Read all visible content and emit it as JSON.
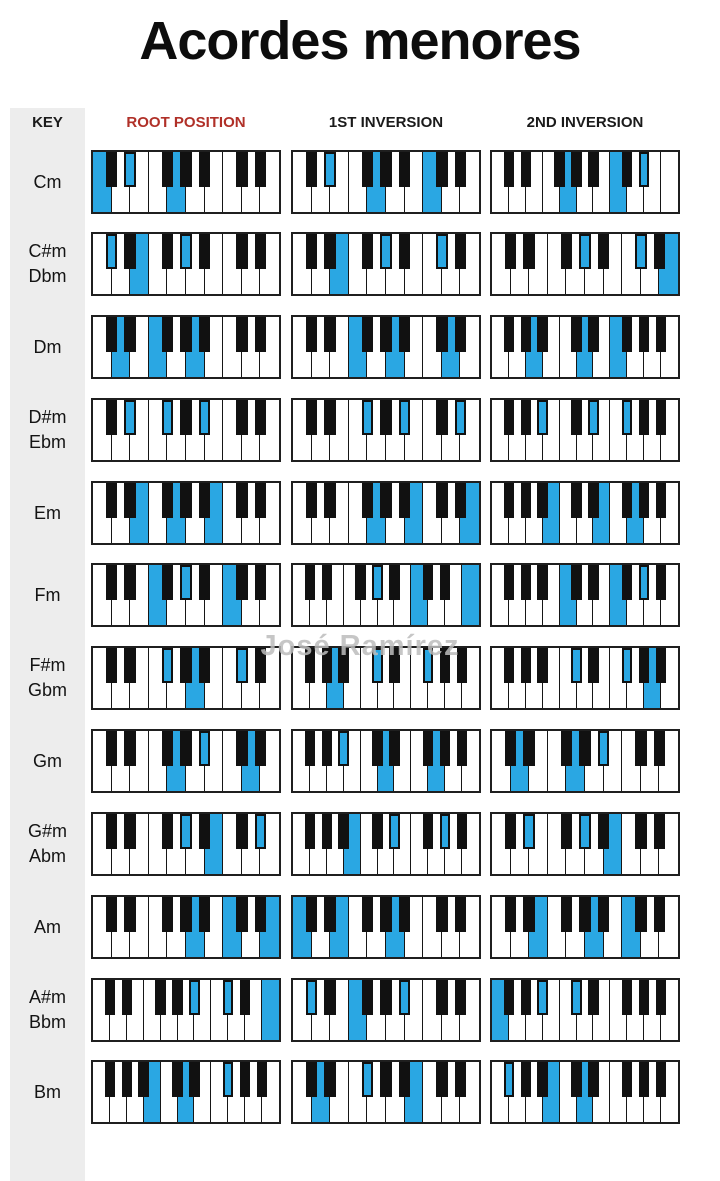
{
  "title": "Acordes menores",
  "watermark": "José Ramírez",
  "headers": {
    "key": "KEY",
    "root": "ROOT POSITION",
    "first": "1ST INVERSION",
    "second": "2ND INVERSION"
  },
  "colors": {
    "highlight": "#2aa7e3",
    "root_header_red": "#b03028",
    "strip_gray": "#ededed",
    "key_black": "#111111"
  },
  "layout_note": "12 rows x 3 keyboard diagrams; blue keys = chord tones",
  "rows": [
    {
      "key_label": [
        "Cm"
      ],
      "keyboards": [
        {
          "start": "C",
          "white_count": 10,
          "hl_whites": [
            0,
            4
          ],
          "hl_blacks": [
            1
          ],
          "chord": "C Eb G"
        },
        {
          "start": "C",
          "white_count": 10,
          "hl_whites": [
            4,
            7
          ],
          "hl_blacks": [
            1
          ],
          "chord": "Eb G C"
        },
        {
          "start": "C",
          "white_count": 11,
          "hl_whites": [
            4,
            7
          ],
          "hl_blacks": [
            6
          ],
          "chord": "G C Eb"
        }
      ]
    },
    {
      "key_label": [
        "C#m",
        "Dbm"
      ],
      "keyboards": [
        {
          "start": "C",
          "white_count": 10,
          "hl_whites": [
            2
          ],
          "hl_blacks": [
            0,
            3
          ],
          "chord": "C# E G#"
        },
        {
          "start": "C",
          "white_count": 10,
          "hl_whites": [
            2
          ],
          "hl_blacks": [
            3,
            5
          ],
          "chord": "E G# C#"
        },
        {
          "start": "C",
          "white_count": 10,
          "hl_whites": [
            9
          ],
          "hl_blacks": [
            3,
            5
          ],
          "chord": "G# C# E"
        }
      ]
    },
    {
      "key_label": [
        "Dm"
      ],
      "keyboards": [
        {
          "start": "C",
          "white_count": 10,
          "hl_whites": [
            1,
            3,
            5
          ],
          "hl_blacks": [],
          "chord": "D F A"
        },
        {
          "start": "C",
          "white_count": 10,
          "hl_whites": [
            3,
            5,
            8
          ],
          "hl_blacks": [],
          "chord": "F A D"
        },
        {
          "start": "F",
          "white_count": 11,
          "hl_whites": [
            2,
            5,
            7
          ],
          "hl_blacks": [],
          "chord": "A D F"
        }
      ]
    },
    {
      "key_label": [
        "D#m",
        "Ebm"
      ],
      "keyboards": [
        {
          "start": "C",
          "white_count": 10,
          "hl_whites": [],
          "hl_blacks": [
            1,
            2,
            4
          ],
          "chord": "Eb Gb Bb"
        },
        {
          "start": "C",
          "white_count": 10,
          "hl_whites": [],
          "hl_blacks": [
            2,
            4,
            6
          ],
          "chord": "Gb Bb Eb"
        },
        {
          "start": "F",
          "white_count": 11,
          "hl_whites": [],
          "hl_blacks": [
            2,
            4,
            5
          ],
          "chord": "Bb Eb Gb"
        }
      ]
    },
    {
      "key_label": [
        "Em"
      ],
      "keyboards": [
        {
          "start": "C",
          "white_count": 10,
          "hl_whites": [
            2,
            4,
            6
          ],
          "hl_blacks": [],
          "chord": "E G B"
        },
        {
          "start": "C",
          "white_count": 10,
          "hl_whites": [
            4,
            6,
            9
          ],
          "hl_blacks": [],
          "chord": "G B E"
        },
        {
          "start": "F",
          "white_count": 11,
          "hl_whites": [
            3,
            6,
            8
          ],
          "hl_blacks": [],
          "chord": "B E G"
        }
      ]
    },
    {
      "key_label": [
        "Fm"
      ],
      "keyboards": [
        {
          "start": "C",
          "white_count": 10,
          "hl_whites": [
            3,
            7
          ],
          "hl_blacks": [
            3
          ],
          "chord": "F Ab C"
        },
        {
          "start": "C",
          "white_count": 11,
          "hl_whites": [
            7,
            10
          ],
          "hl_blacks": [
            3
          ],
          "chord": "Ab C F"
        },
        {
          "start": "F",
          "white_count": 11,
          "hl_whites": [
            4,
            7
          ],
          "hl_blacks": [
            6
          ],
          "chord": "C F Ab"
        }
      ]
    },
    {
      "key_label": [
        "F#m",
        "Gbm"
      ],
      "keyboards": [
        {
          "start": "C",
          "white_count": 10,
          "hl_whites": [
            5
          ],
          "hl_blacks": [
            2,
            5
          ],
          "chord": "F# A C#"
        },
        {
          "start": "F",
          "white_count": 11,
          "hl_whites": [
            2
          ],
          "hl_blacks": [
            3,
            5
          ],
          "chord": "A C# F#"
        },
        {
          "start": "F",
          "white_count": 11,
          "hl_whites": [
            9
          ],
          "hl_blacks": [
            3,
            5
          ],
          "chord": "C# F# A"
        }
      ]
    },
    {
      "key_label": [
        "Gm"
      ],
      "keyboards": [
        {
          "start": "C",
          "white_count": 10,
          "hl_whites": [
            4,
            8
          ],
          "hl_blacks": [
            4
          ],
          "chord": "G Bb D"
        },
        {
          "start": "F",
          "white_count": 11,
          "hl_whites": [
            5,
            8
          ],
          "hl_blacks": [
            2
          ],
          "chord": "Bb D G"
        },
        {
          "start": "C",
          "white_count": 10,
          "hl_whites": [
            1,
            4
          ],
          "hl_blacks": [
            4
          ],
          "chord": "D G Bb"
        }
      ]
    },
    {
      "key_label": [
        "G#m",
        "Abm"
      ],
      "keyboards": [
        {
          "start": "C",
          "white_count": 10,
          "hl_whites": [
            6
          ],
          "hl_blacks": [
            3,
            6
          ],
          "chord": "G# B D#"
        },
        {
          "start": "F",
          "white_count": 11,
          "hl_whites": [
            3
          ],
          "hl_blacks": [
            4,
            6
          ],
          "chord": "B D# G#"
        },
        {
          "start": "C",
          "white_count": 10,
          "hl_whites": [
            6
          ],
          "hl_blacks": [
            1,
            3
          ],
          "chord": "D# G# B"
        }
      ]
    },
    {
      "key_label": [
        "Am"
      ],
      "keyboards": [
        {
          "start": "C",
          "white_count": 10,
          "hl_whites": [
            5,
            7,
            9
          ],
          "hl_blacks": [],
          "chord": "A C E"
        },
        {
          "start": "C",
          "white_count": 10,
          "hl_whites": [
            0,
            2,
            5
          ],
          "hl_blacks": [],
          "chord": "C E A"
        },
        {
          "start": "C",
          "white_count": 10,
          "hl_whites": [
            2,
            5,
            7
          ],
          "hl_blacks": [],
          "chord": "E A C"
        }
      ]
    },
    {
      "key_label": [
        "A#m",
        "Bbm"
      ],
      "keyboards": [
        {
          "start": "C",
          "white_count": 11,
          "hl_whites": [
            10
          ],
          "hl_blacks": [
            4,
            5
          ],
          "chord": "Bb Db F"
        },
        {
          "start": "C",
          "white_count": 10,
          "hl_whites": [
            3
          ],
          "hl_blacks": [
            0,
            4
          ],
          "chord": "Db F Bb"
        },
        {
          "start": "F",
          "white_count": 11,
          "hl_whites": [
            0
          ],
          "hl_blacks": [
            2,
            3
          ],
          "chord": "F Bb Db"
        }
      ]
    },
    {
      "key_label": [
        "Bm"
      ],
      "keyboards": [
        {
          "start": "F",
          "white_count": 11,
          "hl_whites": [
            3,
            5
          ],
          "hl_blacks": [
            5
          ],
          "chord": "B D F#"
        },
        {
          "start": "C",
          "white_count": 10,
          "hl_whites": [
            1,
            6
          ],
          "hl_blacks": [
            2
          ],
          "chord": "D F# B"
        },
        {
          "start": "F",
          "white_count": 11,
          "hl_whites": [
            3,
            5
          ],
          "hl_blacks": [
            0
          ],
          "chord": "F# B D"
        }
      ]
    }
  ],
  "chart_data": {
    "type": "table",
    "columns": [
      "KEY",
      "ROOT POSITION",
      "1ST INVERSION",
      "2ND INVERSION"
    ],
    "rows": [
      [
        "Cm",
        "C Eb G",
        "Eb G C",
        "G C Eb"
      ],
      [
        "C#m / Dbm",
        "C# E G#",
        "E G# C#",
        "G# C# E"
      ],
      [
        "Dm",
        "D F A",
        "F A D",
        "A D F"
      ],
      [
        "D#m / Ebm",
        "Eb Gb Bb",
        "Gb Bb Eb",
        "Bb Eb Gb"
      ],
      [
        "Em",
        "E G B",
        "G B E",
        "B E G"
      ],
      [
        "Fm",
        "F Ab C",
        "Ab C F",
        "C F Ab"
      ],
      [
        "F#m / Gbm",
        "F# A C#",
        "A C# F#",
        "C# F# A"
      ],
      [
        "Gm",
        "G Bb D",
        "Bb D G",
        "D G Bb"
      ],
      [
        "G#m / Abm",
        "G# B D#",
        "B D# G#",
        "D# G# B"
      ],
      [
        "Am",
        "A C E",
        "C E A",
        "E A C"
      ],
      [
        "A#m / Bbm",
        "Bb Db F",
        "Db F Bb",
        "F Bb Db"
      ],
      [
        "Bm",
        "B D F#",
        "D F# B",
        "F# B D"
      ]
    ]
  }
}
